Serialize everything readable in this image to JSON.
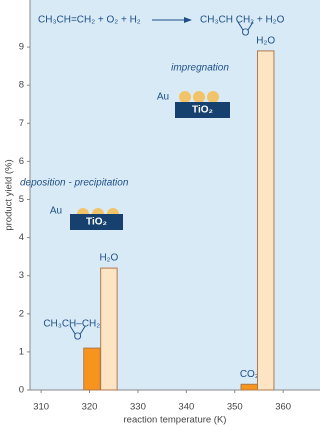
{
  "chart_data": {
    "type": "bar",
    "reaction": {
      "reactants": "CH₃CH=CH₂ + O₂ + H₂",
      "product": "CH₃CH   CH₂ + H₂O",
      "product_bridge": "O"
    },
    "ylabel": "product yield (%)",
    "xlabel": "reaction temperature (K)",
    "xlim": [
      307.7,
      367.2
    ],
    "xticks": [
      310,
      320,
      330,
      340,
      350,
      360
    ],
    "ylim": [
      0,
      10
    ],
    "yticks": [
      0,
      1,
      2,
      3,
      4,
      5,
      6,
      7,
      8,
      9
    ],
    "series": [
      {
        "color": "#f7941d",
        "x": [
          320.5,
          353
        ],
        "values": [
          1.1,
          0.15
        ],
        "labels": [
          [
            "CH₃CH–CH₂",
            "O"
          ],
          [
            "CO₂"
          ]
        ]
      },
      {
        "color": "#fde4c2",
        "x": [
          324,
          356.4
        ],
        "values": [
          3.2,
          8.9
        ],
        "labels": [
          [
            "H₂O"
          ],
          [
            "H₂O"
          ]
        ]
      }
    ],
    "insets": [
      {
        "method": "impregnation",
        "metal": "Au",
        "support": "TiO₂"
      },
      {
        "method": "deposition - precipitation",
        "metal": "Au",
        "support": "TiO₂"
      }
    ]
  }
}
